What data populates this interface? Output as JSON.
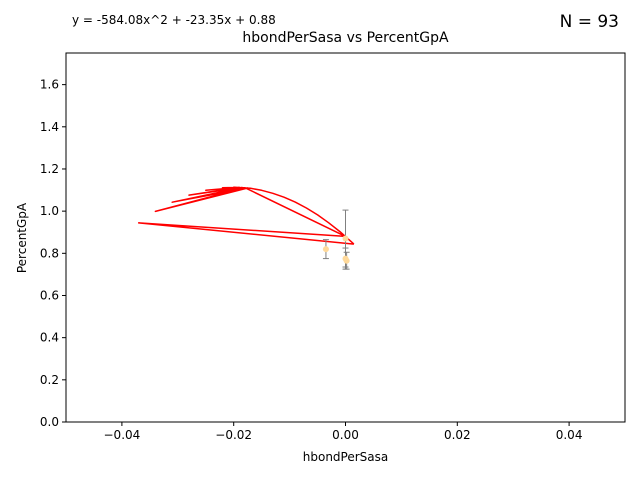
{
  "header": {
    "equation": "y = -584.08x^2 + -23.35x + 0.88",
    "n_label": "N = 93"
  },
  "chart_data": {
    "type": "scatter",
    "title": "hbondPerSasa vs PercentGpA",
    "xlabel": "hbondPerSasa",
    "ylabel": "PercentGpA",
    "xlim": [
      -0.05,
      0.05
    ],
    "ylim": [
      0.0,
      1.75
    ],
    "x_ticks": [
      -0.04,
      -0.02,
      0.0,
      0.02,
      0.04
    ],
    "x_tick_labels": [
      "−0.04",
      "−0.02",
      "0.00",
      "0.02",
      "0.04"
    ],
    "y_ticks": [
      0.0,
      0.2,
      0.4,
      0.6,
      0.8,
      1.0,
      1.2,
      1.4,
      1.6
    ],
    "y_tick_labels": [
      "0.0",
      "0.2",
      "0.4",
      "0.6",
      "0.8",
      "1.0",
      "1.2",
      "1.4",
      "1.6"
    ],
    "grid": false,
    "fit": {
      "a": -584.08,
      "b": -23.35,
      "c": 0.88,
      "color": "#ff0000"
    },
    "fit_x_order": [
      0.0015,
      -0.037,
      0.0,
      -0.018,
      -0.034,
      -0.0175,
      -0.031,
      -0.0185,
      -0.028,
      -0.019,
      -0.025,
      -0.019,
      -0.022,
      -0.018,
      -0.02,
      -0.017,
      -0.015,
      -0.013,
      -0.011,
      -0.009,
      -0.007,
      -0.005,
      -0.003,
      -0.001,
      0.0015
    ],
    "points": [
      {
        "x": -0.0035,
        "y": 0.82,
        "err": 0.045
      },
      {
        "x": 0.0,
        "y": 0.87,
        "err": 0.135
      },
      {
        "x": 0.0,
        "y": 0.775,
        "err": 0.05
      },
      {
        "x": 0.0002,
        "y": 0.765,
        "err": 0.04
      }
    ],
    "point_color": "#ffd99a",
    "errorbar_color": "#808080"
  }
}
